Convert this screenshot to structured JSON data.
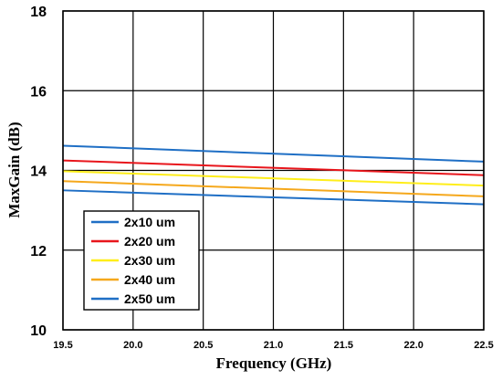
{
  "chart_data": {
    "type": "line",
    "title": "",
    "xlabel": "Frequency (GHz)",
    "ylabel": "MaxGain (dB)",
    "xlim": [
      19.5,
      22.5
    ],
    "ylim": [
      10,
      18
    ],
    "xticks": [
      "19.5",
      "20.0",
      "20.5",
      "21.0",
      "21.5",
      "22.0",
      "22.5"
    ],
    "yticks": [
      "10",
      "12",
      "14",
      "16",
      "18"
    ],
    "grid": true,
    "legend_position": "lower-left",
    "x": [
      19.5,
      22.5
    ],
    "series": [
      {
        "name": "2x10 um",
        "color": "#1f6fc5",
        "values": [
          14.62,
          14.22
        ]
      },
      {
        "name": "2x20 um",
        "color": "#e8161c",
        "values": [
          14.25,
          13.88
        ]
      },
      {
        "name": "2x30 um",
        "color": "#ffee1a",
        "values": [
          13.98,
          13.62
        ]
      },
      {
        "name": "2x40 um",
        "color": "#f5a81c",
        "values": [
          13.73,
          13.35
        ]
      },
      {
        "name": "2x50 um",
        "color": "#1f6fc5",
        "values": [
          13.5,
          13.15
        ]
      }
    ]
  }
}
